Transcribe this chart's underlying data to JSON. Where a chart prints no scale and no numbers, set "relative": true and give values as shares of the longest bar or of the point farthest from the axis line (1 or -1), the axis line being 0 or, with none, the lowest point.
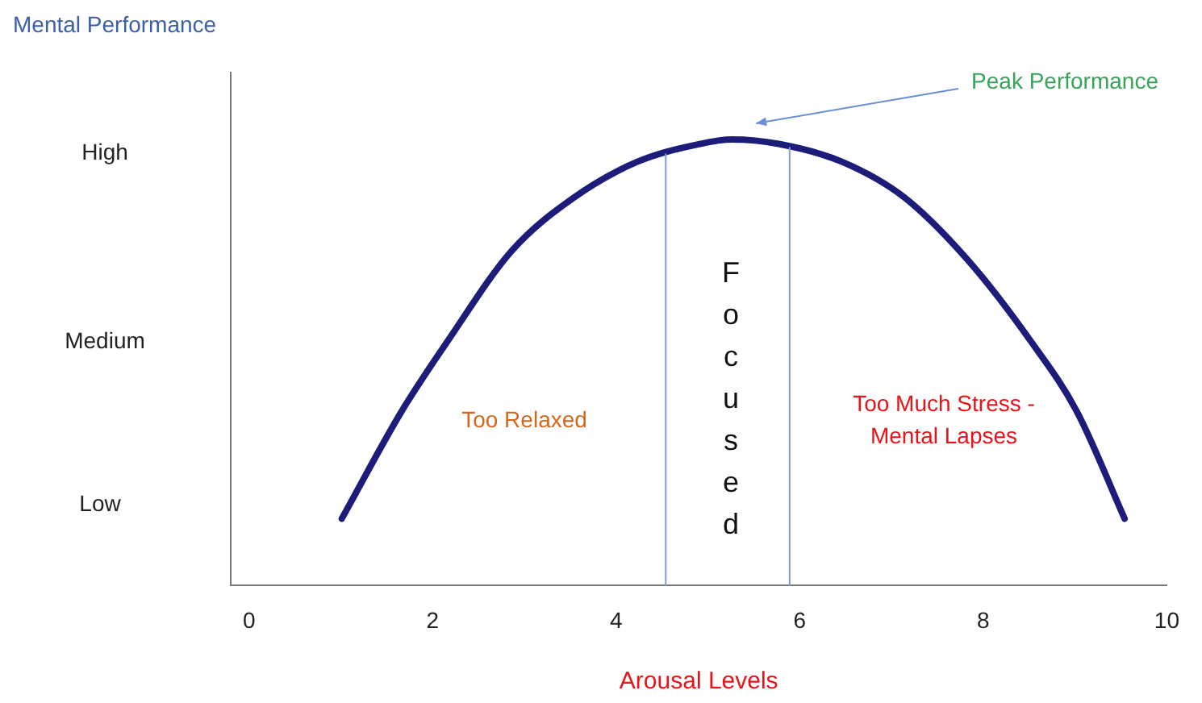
{
  "chart_data": {
    "type": "line",
    "ylabel": "Mental Performance",
    "xlabel": "Arousal Levels",
    "relative": true,
    "x": [
      1.01,
      1.66,
      2.17,
      2.86,
      3.54,
      4.23,
      4.91,
      5.26,
      5.77,
      6.46,
      7.14,
      7.83,
      8.51,
      9.02,
      9.54
    ],
    "series": [
      {
        "color": "#1c1c7a",
        "values": [
          0.15,
          0.39,
          0.55,
          0.75,
          0.87,
          0.95,
          0.99,
          1,
          0.99,
          0.95,
          0.87,
          0.73,
          0.55,
          0.39,
          0.15
        ]
      }
    ],
    "xlim": [
      -0.2,
      10
    ],
    "xticks": [
      0,
      2,
      4,
      6,
      8,
      10
    ],
    "ref_lines": [
      {
        "axis": "x",
        "value": 4.54,
        "color": "#7f9fd0"
      },
      {
        "axis": "x",
        "value": 5.89,
        "color": "#7f9fd0"
      }
    ],
    "annotations": [
      "Focused",
      "Too Relaxed",
      "Too Much Stress -\nMental Lapses",
      "Peak Performance",
      "High",
      "Medium",
      "Low"
    ],
    "grid": false,
    "legend": false,
    "marker": "none",
    "line_style": "solid"
  }
}
